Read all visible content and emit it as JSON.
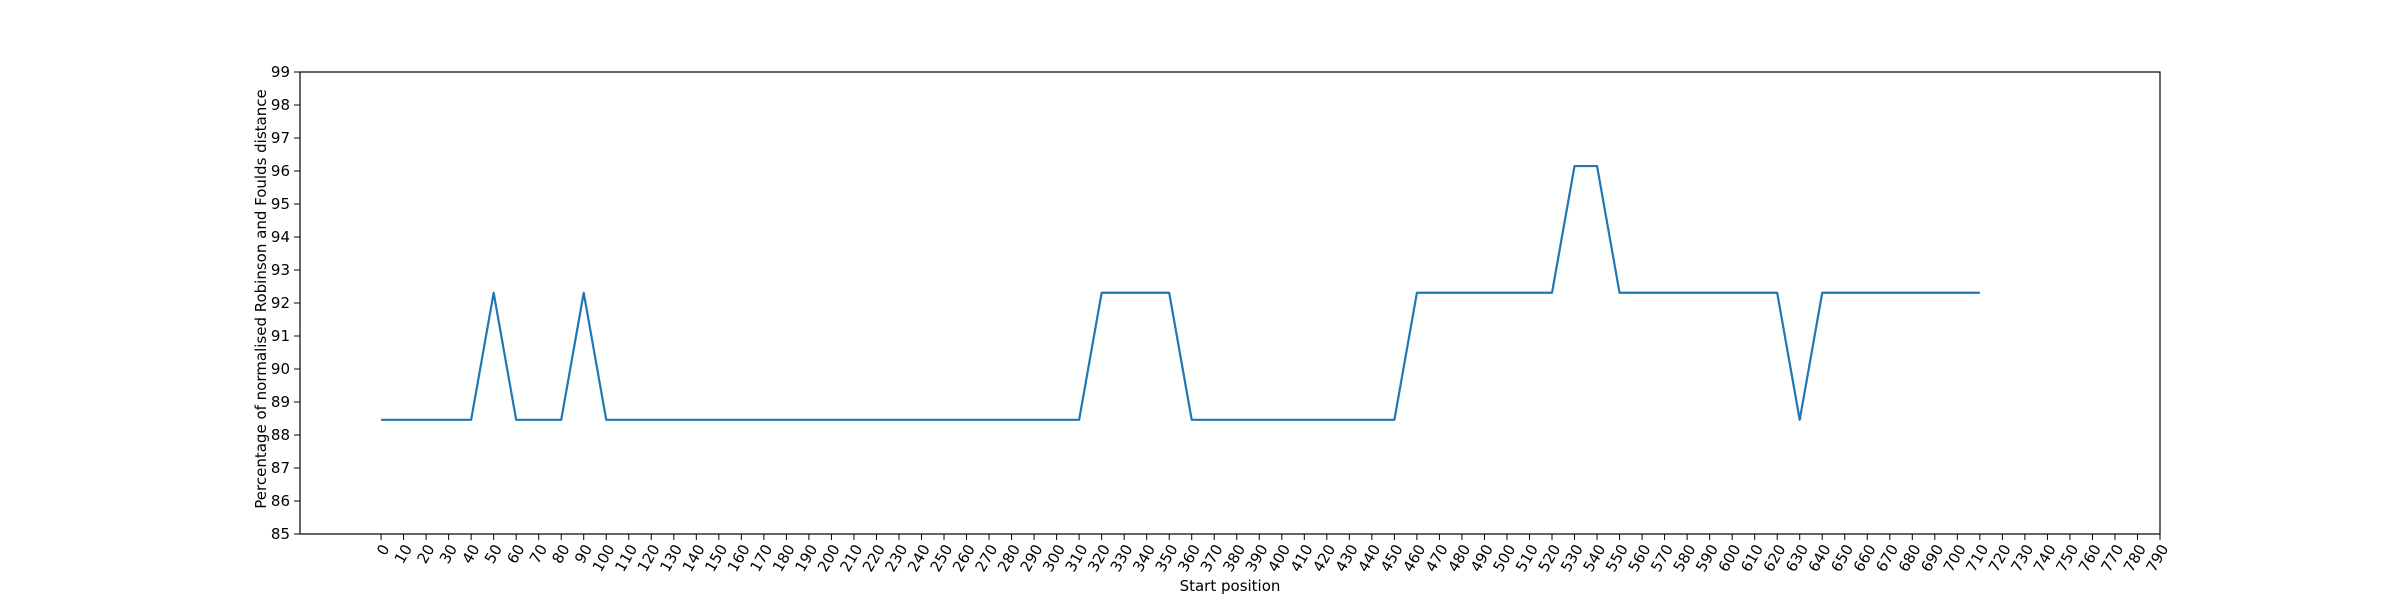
{
  "chart_data": {
    "type": "line",
    "title": "",
    "xlabel": "Start position",
    "ylabel": "Percentage of normalised Robinson and Foulds distance",
    "xlim": [
      -36,
      790
    ],
    "ylim": [
      85,
      99
    ],
    "xticks": [
      0,
      10,
      20,
      30,
      40,
      50,
      60,
      70,
      80,
      90,
      100,
      110,
      120,
      130,
      140,
      150,
      160,
      170,
      180,
      190,
      200,
      210,
      220,
      230,
      240,
      250,
      260,
      270,
      280,
      290,
      300,
      310,
      320,
      330,
      340,
      350,
      360,
      370,
      380,
      390,
      400,
      410,
      420,
      430,
      440,
      450,
      460,
      470,
      480,
      490,
      500,
      510,
      520,
      530,
      540,
      550,
      560,
      570,
      580,
      590,
      600,
      610,
      620,
      630,
      640,
      650,
      660,
      670,
      680,
      690,
      700,
      710,
      720,
      730,
      740,
      750,
      760,
      770,
      780,
      790
    ],
    "yticks": [
      85,
      86,
      87,
      88,
      89,
      90,
      91,
      92,
      93,
      94,
      95,
      96,
      97,
      98,
      99
    ],
    "grid": false,
    "color": "#1f77b4",
    "series": [
      {
        "name": "",
        "x": [
          0,
          10,
          20,
          30,
          40,
          50,
          60,
          70,
          80,
          90,
          100,
          110,
          120,
          130,
          140,
          150,
          160,
          170,
          180,
          190,
          200,
          210,
          220,
          230,
          240,
          250,
          260,
          270,
          280,
          290,
          300,
          310,
          320,
          330,
          340,
          350,
          360,
          370,
          380,
          390,
          400,
          410,
          420,
          430,
          440,
          450,
          460,
          470,
          480,
          490,
          500,
          510,
          520,
          530,
          540,
          550,
          560,
          570,
          580,
          590,
          600,
          610,
          620,
          630,
          640,
          650,
          660,
          670,
          680,
          690,
          700,
          710
        ],
        "y": [
          88.46,
          88.46,
          88.46,
          88.46,
          88.46,
          92.31,
          88.46,
          88.46,
          88.46,
          92.31,
          88.46,
          88.46,
          88.46,
          88.46,
          88.46,
          88.46,
          88.46,
          88.46,
          88.46,
          88.46,
          88.46,
          88.46,
          88.46,
          88.46,
          88.46,
          88.46,
          88.46,
          88.46,
          88.46,
          88.46,
          88.46,
          88.46,
          92.31,
          92.31,
          92.31,
          92.31,
          88.46,
          88.46,
          88.46,
          88.46,
          88.46,
          88.46,
          88.46,
          88.46,
          88.46,
          88.46,
          92.31,
          92.31,
          92.31,
          92.31,
          92.31,
          92.31,
          92.31,
          96.15,
          96.15,
          92.31,
          92.31,
          92.31,
          92.31,
          92.31,
          92.31,
          92.31,
          92.31,
          88.46,
          92.31,
          92.31,
          92.31,
          92.31,
          92.31,
          92.31,
          92.31,
          92.31
        ]
      }
    ]
  }
}
